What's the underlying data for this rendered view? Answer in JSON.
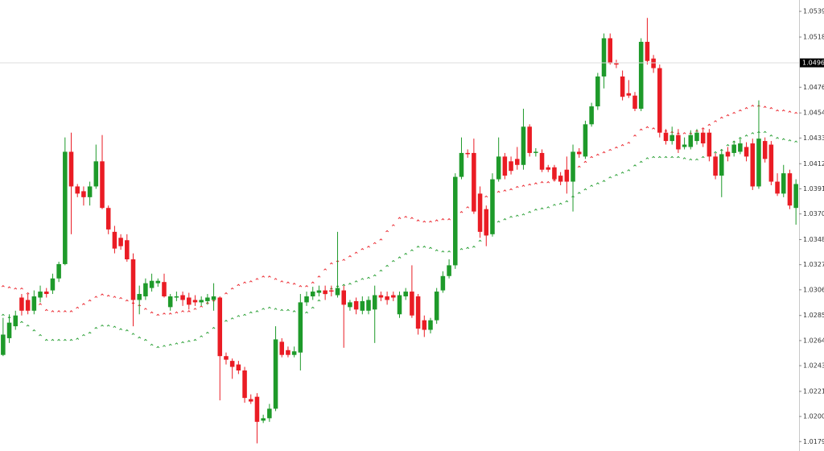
{
  "chart_data": {
    "type": "candlestick",
    "ylim": [
      1.01716,
      1.0549
    ],
    "yticks": [
      1.05395,
      {
        "value": 1.0518,
        "label": "1.05180"
      },
      {
        "value": 1.0476,
        "label": "1.04760"
      },
      1.04545,
      1.04335,
      {
        "value": 1.0412,
        "label": "1.04120"
      },
      {
        "value": 1.0391,
        "label": "1.03910"
      },
      {
        "value": 1.037,
        "label": "1.03700"
      },
      1.03485,
      1.03275,
      1.03065,
      {
        "value": 1.0285,
        "label": "1.02850"
      },
      {
        "value": 1.0264,
        "label": "1.02640"
      },
      {
        "value": 1.0243,
        "label": "1.02430"
      },
      1.02215,
      1.02005,
      1.01795
    ],
    "current_price": 1.04964,
    "up_color": "#1e9a2a",
    "down_color": "#ea1c24",
    "open": [
      1.0252,
      1.0266,
      1.0276,
      1.03,
      1.0298,
      1.0289,
      1.03,
      1.0305,
      1.0306,
      1.0316,
      1.0328,
      1.0422,
      1.0393,
      1.0389,
      1.0384,
      1.0393,
      1.0414,
      1.0375,
      1.0355,
      1.035,
      1.0348,
      1.0332,
      1.0298,
      1.0301,
      1.0308,
      1.0312,
      1.0313,
      1.0292,
      1.03,
      1.0302,
      1.03,
      1.0298,
      1.0296,
      1.0297,
      1.0298,
      1.03,
      1.0251,
      1.0247,
      1.0244,
      1.0239,
      1.0215,
      1.0217,
      1.0197,
      1.0199,
      1.0207,
      1.0263,
      1.0256,
      1.0252,
      1.0254,
      1.0296,
      1.0301,
      1.0304,
      1.0306,
      1.0306,
      1.0302,
      1.0306,
      1.0292,
      1.0297,
      1.0289,
      1.0289,
      1.029,
      1.0302,
      1.0301,
      1.0302,
      1.0286,
      1.0301,
      1.0305,
      1.0301,
      1.0281,
      1.0273,
      1.0281,
      1.0306,
      1.0318,
      1.0327,
      1.0401,
      1.0421,
      1.0421,
      1.0387,
      1.0374,
      1.0353,
      1.0399,
      1.0418,
      1.0414,
      1.0416,
      1.0411,
      1.0443,
      1.0421,
      1.0421,
      1.0409,
      1.0409,
      1.0402,
      1.0407,
      1.0397,
      1.0422,
      1.0418,
      1.0445,
      1.046,
      1.0485,
      1.0517,
      1.0496,
      1.0485,
      1.0471,
      1.0469,
      1.0458,
      1.0514,
      1.05,
      1.0492,
      1.0438,
      1.0431,
      1.0436,
      1.0426,
      1.0426,
      1.0431,
      1.0438,
      1.0438,
      1.0418,
      1.0402,
      1.0422,
      1.0421,
      1.0422,
      1.0426,
      1.0429,
      1.0393,
      1.0431,
      1.0428,
      1.0397,
      1.0387,
      1.0404,
      1.0375
    ],
    "high": [
      1.0283,
      1.0286,
      1.0289,
      1.0303,
      1.0303,
      1.0306,
      1.031,
      1.0308,
      1.032,
      1.033,
      1.0434,
      1.0438,
      1.0395,
      1.0393,
      1.0397,
      1.0428,
      1.0436,
      1.0377,
      1.036,
      1.0353,
      1.0353,
      1.0337,
      1.031,
      1.0316,
      1.032,
      1.0316,
      1.032,
      1.0303,
      1.0305,
      1.0305,
      1.0304,
      1.0302,
      1.0301,
      1.0303,
      1.0312,
      1.0301,
      1.0254,
      1.0249,
      1.0247,
      1.0242,
      1.0219,
      1.022,
      1.0202,
      1.0211,
      1.0276,
      1.0266,
      1.0259,
      1.0259,
      1.0303,
      1.0305,
      1.0309,
      1.031,
      1.031,
      1.031,
      1.0355,
      1.031,
      1.0298,
      1.03,
      1.0301,
      1.0301,
      1.031,
      1.0305,
      1.0305,
      1.0305,
      1.0305,
      1.0308,
      1.0327,
      1.0303,
      1.0285,
      1.0283,
      1.0308,
      1.0322,
      1.0332,
      1.0404,
      1.0434,
      1.0424,
      1.0433,
      1.0393,
      1.0377,
      1.0404,
      1.0434,
      1.0421,
      1.0418,
      1.0426,
      1.0458,
      1.0445,
      1.0425,
      1.0424,
      1.0411,
      1.0411,
      1.0405,
      1.0418,
      1.0428,
      1.0425,
      1.0448,
      1.0463,
      1.0488,
      1.0521,
      1.0521,
      1.0499,
      1.049,
      1.0482,
      1.0472,
      1.0517,
      1.0534,
      1.0503,
      1.0495,
      1.0441,
      1.0443,
      1.0441,
      1.0434,
      1.044,
      1.0441,
      1.0441,
      1.0441,
      1.0421,
      1.0424,
      1.0426,
      1.0431,
      1.0433,
      1.043,
      1.0433,
      1.0465,
      1.0434,
      1.0431,
      1.0404,
      1.0411,
      1.0407,
      1.0399
    ],
    "low": [
      1.0251,
      1.0262,
      1.0273,
      1.0285,
      1.0286,
      1.0286,
      1.0296,
      1.03,
      1.0303,
      1.0313,
      1.0327,
      1.0353,
      1.0384,
      1.0377,
      1.0377,
      1.0391,
      1.0374,
      1.0353,
      1.0337,
      1.034,
      1.033,
      1.0276,
      1.0286,
      1.0298,
      1.0305,
      1.0309,
      1.03,
      1.0289,
      1.0297,
      1.0293,
      1.029,
      1.0293,
      1.0293,
      1.0294,
      1.0289,
      1.0214,
      1.0244,
      1.0232,
      1.0236,
      1.0212,
      1.0211,
      1.0178,
      1.0195,
      1.0196,
      1.0205,
      1.025,
      1.025,
      1.025,
      1.0239,
      1.0293,
      1.0298,
      1.0301,
      1.0298,
      1.0301,
      1.03,
      1.0258,
      1.0289,
      1.0286,
      1.0286,
      1.0286,
      1.0262,
      1.0297,
      1.0294,
      1.0297,
      1.0283,
      1.0298,
      1.0283,
      1.0269,
      1.0267,
      1.027,
      1.0278,
      1.0304,
      1.0316,
      1.0324,
      1.0399,
      1.0417,
      1.037,
      1.035,
      1.0343,
      1.0351,
      1.0397,
      1.0399,
      1.0403,
      1.0407,
      1.0407,
      1.0418,
      1.0418,
      1.0405,
      1.0405,
      1.0397,
      1.0394,
      1.0387,
      1.0372,
      1.0417,
      1.0416,
      1.0443,
      1.0457,
      1.0475,
      1.0495,
      1.0492,
      1.0465,
      1.0467,
      1.0456,
      1.0456,
      1.0495,
      1.0488,
      1.0434,
      1.0428,
      1.0428,
      1.0421,
      1.0424,
      1.0424,
      1.0428,
      1.0426,
      1.0414,
      1.0399,
      1.0384,
      1.0414,
      1.0418,
      1.042,
      1.0414,
      1.039,
      1.0391,
      1.0413,
      1.0394,
      1.0385,
      1.0384,
      1.0374,
      1.0361
    ],
    "close": [
      1.0269,
      1.0279,
      1.0285,
      1.0289,
      1.0289,
      1.0301,
      1.0305,
      1.0303,
      1.0316,
      1.0328,
      1.0422,
      1.0393,
      1.0387,
      1.0384,
      1.0393,
      1.0414,
      1.0375,
      1.0357,
      1.0341,
      1.0343,
      1.0332,
      1.0298,
      1.0303,
      1.0312,
      1.0314,
      1.0314,
      1.0301,
      1.0301,
      1.0301,
      1.0298,
      1.0294,
      1.0296,
      1.0298,
      1.03,
      1.0301,
      1.0251,
      1.0248,
      1.0242,
      1.0239,
      1.0216,
      1.0213,
      1.0196,
      1.0199,
      1.0207,
      1.0265,
      1.0252,
      1.0252,
      1.0255,
      1.0296,
      1.0301,
      1.0305,
      1.0306,
      1.0303,
      1.0305,
      1.0308,
      1.0294,
      1.0296,
      1.029,
      1.0297,
      1.0298,
      1.0302,
      1.03,
      1.0298,
      1.03,
      1.0302,
      1.0305,
      1.0285,
      1.0274,
      1.0273,
      1.0281,
      1.0305,
      1.0318,
      1.0327,
      1.0401,
      1.0421,
      1.042,
      1.0372,
      1.0355,
      1.0352,
      1.0399,
      1.0418,
      1.0402,
      1.0406,
      1.0411,
      1.0443,
      1.0421,
      1.0422,
      1.0407,
      1.0407,
      1.0399,
      1.0397,
      1.0397,
      1.0422,
      1.042,
      1.0445,
      1.046,
      1.0485,
      1.0517,
      1.0496,
      1.0495,
      1.0468,
      1.0469,
      1.0458,
      1.0514,
      1.0498,
      1.0492,
      1.0438,
      1.0431,
      1.0436,
      1.0424,
      1.0428,
      1.0436,
      1.0438,
      1.0429,
      1.0418,
      1.0402,
      1.042,
      1.0418,
      1.0428,
      1.0429,
      1.0418,
      1.0393,
      1.0433,
      1.0416,
      1.0397,
      1.0387,
      1.0404,
      1.0377,
      1.0395
    ],
    "series": [
      {
        "color": "#ea1c24",
        "values": [
          1.031,
          1.0309,
          1.0308,
          1.0308,
          1.0304,
          1.0299,
          1.0295,
          1.029,
          1.0289,
          1.0289,
          1.0289,
          1.0289,
          1.0292,
          1.0295,
          1.0298,
          1.0301,
          1.0303,
          1.0302,
          1.0301,
          1.03,
          1.0298,
          1.0296,
          1.0294,
          1.0291,
          1.0288,
          1.0286,
          1.0287,
          1.0287,
          1.0288,
          1.0289,
          1.0289,
          1.0291,
          1.0293,
          1.0296,
          1.0298,
          1.03,
          1.0304,
          1.0308,
          1.0311,
          1.0313,
          1.0314,
          1.0316,
          1.0318,
          1.0318,
          1.0316,
          1.0314,
          1.0313,
          1.0312,
          1.031,
          1.031,
          1.0313,
          1.0318,
          1.0324,
          1.0329,
          1.0331,
          1.0332,
          1.0335,
          1.0338,
          1.0341,
          1.0343,
          1.0346,
          1.0349,
          1.0356,
          1.0361,
          1.0367,
          1.0368,
          1.0367,
          1.0365,
          1.0364,
          1.0364,
          1.0365,
          1.0366,
          1.0366,
          1.0368,
          1.0372,
          1.0376,
          1.038,
          1.0383,
          1.0385,
          1.0387,
          1.0389,
          1.039,
          1.0391,
          1.0393,
          1.0394,
          1.0395,
          1.0396,
          1.0397,
          1.0397,
          1.0399,
          1.0399,
          1.0402,
          1.0406,
          1.041,
          1.0414,
          1.0418,
          1.042,
          1.0422,
          1.0424,
          1.0426,
          1.0428,
          1.043,
          1.0436,
          1.0441,
          1.0443,
          1.0442,
          1.044,
          1.044,
          1.0439,
          1.0438,
          1.0438,
          1.0438,
          1.044,
          1.0442,
          1.0445,
          1.0448,
          1.0451,
          1.0453,
          1.0455,
          1.0457,
          1.0459,
          1.0461,
          1.0461,
          1.046,
          1.0459,
          1.0457,
          1.0457,
          1.0456,
          1.0455
        ]
      },
      {
        "color": "#1e9a2a",
        "values": [
          1.0286,
          1.0284,
          1.0282,
          1.028,
          1.0277,
          1.0273,
          1.0269,
          1.0265,
          1.0265,
          1.0265,
          1.0265,
          1.0265,
          1.0266,
          1.0269,
          1.0271,
          1.0275,
          1.0277,
          1.0277,
          1.0276,
          1.0274,
          1.0273,
          1.027,
          1.0267,
          1.0265,
          1.0261,
          1.0259,
          1.026,
          1.0261,
          1.0262,
          1.0263,
          1.0264,
          1.0265,
          1.0268,
          1.0271,
          1.0275,
          1.0278,
          1.0281,
          1.0283,
          1.0285,
          1.0286,
          1.0288,
          1.0289,
          1.0291,
          1.0292,
          1.0291,
          1.029,
          1.029,
          1.0289,
          1.0287,
          1.0288,
          1.0292,
          1.0298,
          1.0304,
          1.0308,
          1.031,
          1.0311,
          1.0312,
          1.0314,
          1.0316,
          1.0317,
          1.0319,
          1.0323,
          1.0327,
          1.0331,
          1.0334,
          1.0337,
          1.034,
          1.0343,
          1.0343,
          1.0342,
          1.034,
          1.0339,
          1.0339,
          1.034,
          1.0341,
          1.0342,
          1.0343,
          1.0348,
          1.0353,
          1.0359,
          1.0364,
          1.0366,
          1.0368,
          1.0369,
          1.037,
          1.0372,
          1.0374,
          1.0375,
          1.0376,
          1.0378,
          1.0379,
          1.0381,
          1.0385,
          1.0388,
          1.0391,
          1.0394,
          1.0396,
          1.0398,
          1.0401,
          1.0403,
          1.0405,
          1.0407,
          1.0411,
          1.0414,
          1.0417,
          1.0418,
          1.0418,
          1.0418,
          1.0418,
          1.0418,
          1.0417,
          1.0416,
          1.0416,
          1.0418,
          1.042,
          1.0422,
          1.0424,
          1.0428,
          1.0431,
          1.0434,
          1.0436,
          1.0438,
          1.0439,
          1.0439,
          1.0436,
          1.0434,
          1.0433,
          1.0432,
          1.0431
        ]
      }
    ]
  }
}
